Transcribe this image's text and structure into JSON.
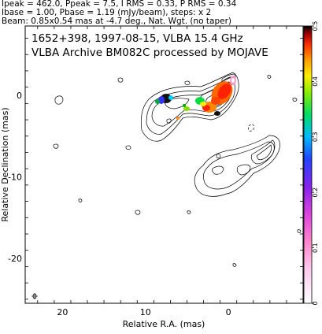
{
  "header": {
    "line1": "Ipeak = 462.0, Ppeak = 7.5, I RMS = 0.33, P RMS = 0.34",
    "line2": "Ibase = 1.00, Pbase = 1.19 (mJy/beam), steps: x 2",
    "line3": "Beam: 0.85x0.54 mas at -4.7 deg., Nat. Wgt. (no taper)"
  },
  "plot_text": {
    "line1": "1652+398, 1997-08-15, VLBA 15.4 GHz",
    "line2": "VLBA Archive BM082C processed by MOJAVE"
  },
  "colors": {
    "contour": "#000000",
    "colorbar_stops": [
      "#ffffff",
      "#ff99cc",
      "#cc00cc",
      "#3333ff",
      "#00ccff",
      "#00dd00",
      "#ffff00",
      "#ff8800",
      "#ff2200",
      "#111111"
    ]
  },
  "chart_data": {
    "type": "contour",
    "xlabel": "Relative R.A. (mas)",
    "ylabel": "Relative Declination (mas)",
    "xlim": [
      24.5,
      -9
    ],
    "ylim": [
      -25.5,
      8.5
    ],
    "x_ticks": [
      20,
      10,
      0
    ],
    "y_ticks": [
      0,
      -10,
      -20
    ],
    "colorbar": {
      "min": 0,
      "max": 0.5,
      "ticks": [
        0,
        0.1,
        0.2,
        0.3,
        0.4,
        0.5
      ]
    },
    "beam": {
      "major_mas": 0.85,
      "minor_mas": 0.54,
      "pa_deg": -4.7
    }
  }
}
